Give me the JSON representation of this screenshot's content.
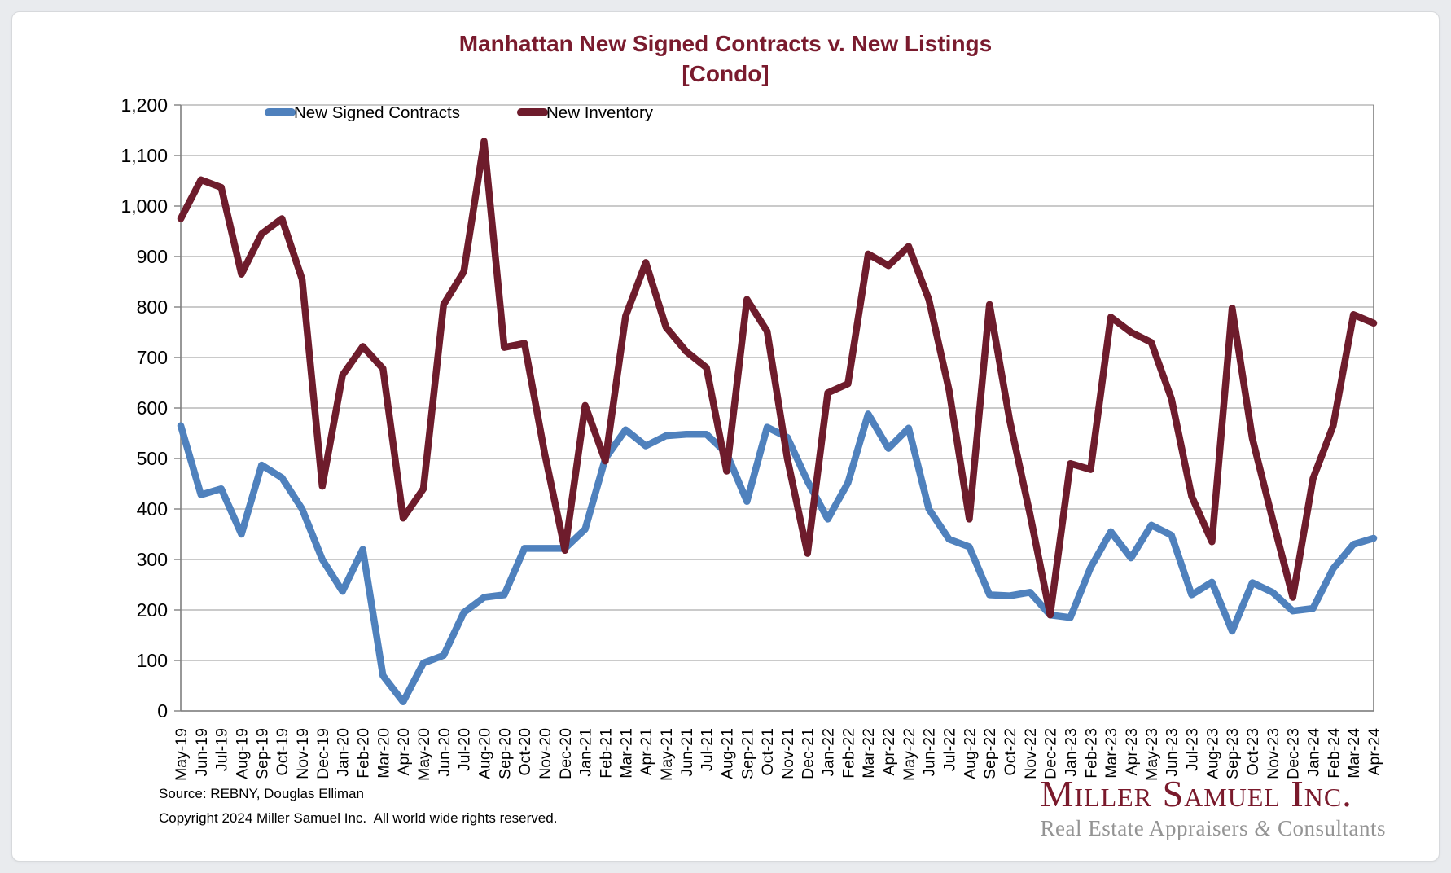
{
  "page": {
    "title_line1": "Manhattan New Signed Contracts v. New Listings",
    "title_line2": "[Condo]",
    "footer": {
      "source": "Source: REBNY, Douglas Elliman",
      "copyright": "Copyright 2024 Miller Samuel Inc.  All world wide rights reserved."
    },
    "logo": {
      "name": "Miller Samuel Inc.",
      "tagline_pre": "Real Estate Appraisers ",
      "tagline_amp": "&",
      "tagline_post": " Consultants"
    }
  },
  "chart_data": {
    "type": "line",
    "title": "Manhattan New Signed Contracts v. New Listings [Condo]",
    "xlabel": "",
    "ylabel": "",
    "ylim": [
      0,
      1200
    ],
    "ytick_step": 100,
    "grid": true,
    "legend_position": "top-inside",
    "colors": {
      "grid": "#b8b8b8",
      "axis": "#7f7f7f",
      "text": "#000000"
    },
    "x": [
      "May-19",
      "Jun-19",
      "Jul-19",
      "Aug-19",
      "Sep-19",
      "Oct-19",
      "Nov-19",
      "Dec-19",
      "Jan-20",
      "Feb-20",
      "Mar-20",
      "Apr-20",
      "May-20",
      "Jun-20",
      "Jul-20",
      "Aug-20",
      "Sep-20",
      "Oct-20",
      "Nov-20",
      "Dec-20",
      "Jan-21",
      "Feb-21",
      "Mar-21",
      "Apr-21",
      "May-21",
      "Jun-21",
      "Jul-21",
      "Aug-21",
      "Sep-21",
      "Oct-21",
      "Nov-21",
      "Dec-21",
      "Jan-22",
      "Feb-22",
      "Mar-22",
      "Apr-22",
      "May-22",
      "Jun-22",
      "Jul-22",
      "Aug-22",
      "Sep-22",
      "Oct-22",
      "Nov-22",
      "Dec-22",
      "Jan-23",
      "Feb-23",
      "Mar-23",
      "Apr-23",
      "May-23",
      "Jun-23",
      "Jul-23",
      "Aug-23",
      "Sep-23",
      "Oct-23",
      "Nov-23",
      "Dec-23",
      "Jan-24",
      "Feb-24",
      "Mar-24",
      "Apr-24"
    ],
    "series": [
      {
        "name": "New Signed Contracts",
        "color": "#4f81bd",
        "values": [
          565,
          428,
          440,
          350,
          487,
          462,
          400,
          300,
          237,
          320,
          70,
          18,
          95,
          110,
          195,
          225,
          230,
          322,
          322,
          322,
          360,
          500,
          557,
          525,
          545,
          548,
          548,
          510,
          415,
          562,
          542,
          455,
          380,
          452,
          588,
          520,
          560,
          400,
          340,
          325,
          230,
          228,
          235,
          190,
          185,
          284,
          355,
          303,
          368,
          348,
          230,
          255,
          158,
          254,
          235,
          198,
          203,
          282,
          330,
          342
        ]
      },
      {
        "name": "New Inventory",
        "color": "#6e1c2c",
        "values": [
          975,
          1052,
          1037,
          865,
          945,
          975,
          855,
          445,
          665,
          722,
          678,
          382,
          440,
          805,
          870,
          1128,
          720,
          728,
          510,
          318,
          605,
          495,
          782,
          888,
          760,
          712,
          680,
          475,
          815,
          752,
          500,
          312,
          630,
          648,
          905,
          882,
          920,
          815,
          635,
          380,
          805,
          575,
          390,
          190,
          490,
          478,
          780,
          750,
          730,
          618,
          425,
          335,
          798,
          540,
          380,
          225,
          460,
          565,
          785,
          768
        ]
      }
    ]
  }
}
